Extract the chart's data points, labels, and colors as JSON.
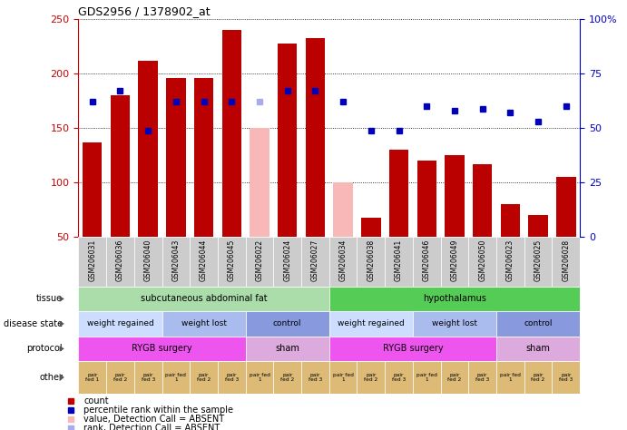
{
  "title": "GDS2956 / 1378902_at",
  "samples": [
    "GSM206031",
    "GSM206036",
    "GSM206040",
    "GSM206043",
    "GSM206044",
    "GSM206045",
    "GSM206022",
    "GSM206024",
    "GSM206027",
    "GSM206034",
    "GSM206038",
    "GSM206041",
    "GSM206046",
    "GSM206049",
    "GSM206050",
    "GSM206023",
    "GSM206025",
    "GSM206028"
  ],
  "count_values": [
    137,
    180,
    212,
    196,
    196,
    240,
    150,
    228,
    233,
    100,
    68,
    130,
    120,
    125,
    117,
    80,
    70,
    105
  ],
  "count_absent": [
    false,
    false,
    false,
    false,
    false,
    false,
    true,
    false,
    false,
    true,
    false,
    false,
    false,
    false,
    false,
    false,
    false,
    false
  ],
  "percentile_values": [
    62,
    67,
    49,
    62,
    62,
    62,
    62,
    67,
    67,
    62,
    49,
    49,
    60,
    58,
    59,
    57,
    53,
    60
  ],
  "percentile_absent": [
    false,
    false,
    false,
    false,
    false,
    false,
    true,
    false,
    false,
    false,
    false,
    false,
    false,
    false,
    false,
    false,
    false,
    false
  ],
  "ylim_left": [
    50,
    250
  ],
  "ylim_right": [
    0,
    100
  ],
  "bar_color_normal": "#bb0000",
  "bar_color_absent": "#f8b8b8",
  "dot_color_normal": "#0000bb",
  "dot_color_absent": "#aaaaee",
  "tissue_groups": [
    {
      "label": "subcutaneous abdominal fat",
      "start": 0,
      "end": 9,
      "color": "#aaddaa"
    },
    {
      "label": "hypothalamus",
      "start": 9,
      "end": 18,
      "color": "#55cc55"
    }
  ],
  "disease_state_groups": [
    {
      "label": "weight regained",
      "start": 0,
      "end": 3,
      "color": "#ccddff"
    },
    {
      "label": "weight lost",
      "start": 3,
      "end": 6,
      "color": "#aabbee"
    },
    {
      "label": "control",
      "start": 6,
      "end": 9,
      "color": "#8899dd"
    },
    {
      "label": "weight regained",
      "start": 9,
      "end": 12,
      "color": "#ccddff"
    },
    {
      "label": "weight lost",
      "start": 12,
      "end": 15,
      "color": "#aabbee"
    },
    {
      "label": "control",
      "start": 15,
      "end": 18,
      "color": "#8899dd"
    }
  ],
  "protocol_groups": [
    {
      "label": "RYGB surgery",
      "start": 0,
      "end": 6,
      "color": "#ee55ee"
    },
    {
      "label": "sham",
      "start": 6,
      "end": 9,
      "color": "#ddaadd"
    },
    {
      "label": "RYGB surgery",
      "start": 9,
      "end": 15,
      "color": "#ee55ee"
    },
    {
      "label": "sham",
      "start": 15,
      "end": 18,
      "color": "#ddaadd"
    }
  ],
  "other_labels": [
    "pair\nfed 1",
    "pair\nfed 2",
    "pair\nfed 3",
    "pair fed\n1",
    "pair\nfed 2",
    "pair\nfed 3",
    "pair fed\n1",
    "pair\nfed 2",
    "pair\nfed 3",
    "pair fed\n1",
    "pair\nfed 2",
    "pair\nfed 3",
    "pair fed\n1",
    "pair\nfed 2",
    "pair\nfed 3",
    "pair fed\n1",
    "pair\nfed 2",
    "pair\nfed 3"
  ],
  "other_color": "#ddbb77",
  "row_labels": [
    "tissue",
    "disease state",
    "protocol",
    "other"
  ],
  "grid_left_ticks": [
    50,
    100,
    150,
    200,
    250
  ],
  "grid_right_ticks": [
    0,
    25,
    50,
    75,
    100
  ],
  "background_color": "#ffffff",
  "tick_label_color_left": "#cc0000",
  "tick_label_color_right": "#0000cc",
  "legend_items": [
    {
      "color": "#bb0000",
      "text": "count"
    },
    {
      "color": "#0000bb",
      "text": "percentile rank within the sample"
    },
    {
      "color": "#f8b8b8",
      "text": "value, Detection Call = ABSENT"
    },
    {
      "color": "#aaaaee",
      "text": "rank, Detection Call = ABSENT"
    }
  ]
}
